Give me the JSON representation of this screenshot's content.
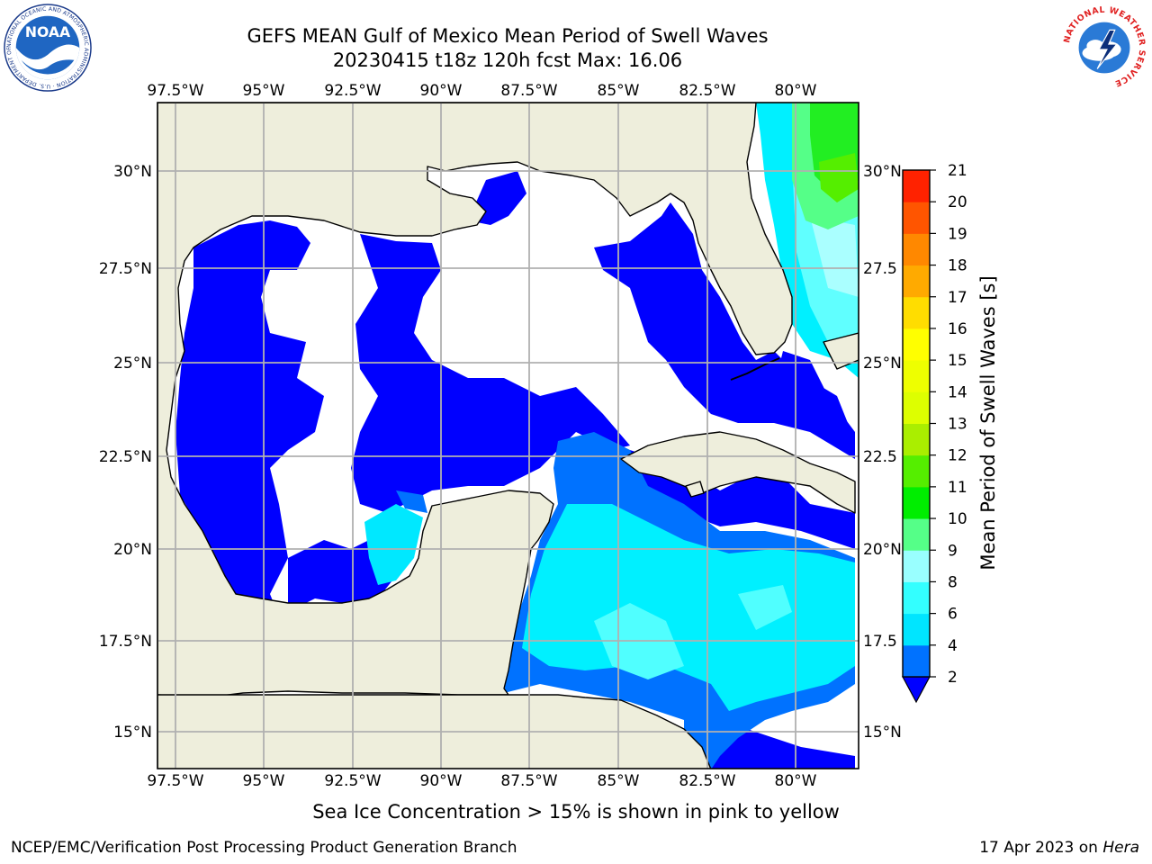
{
  "title": {
    "line1": "GEFS MEAN Gulf of Mexico Mean Period of Swell Waves",
    "line2": "20230415 t18z 120h fcst   Max: 16.06"
  },
  "map": {
    "lon_ticks": [
      "97.5°W",
      "95°W",
      "92.5°W",
      "90°W",
      "87.5°W",
      "85°W",
      "82.5°W",
      "80°W"
    ],
    "lat_ticks": [
      "30°N",
      "27.5°N",
      "25°N",
      "22.5°N",
      "20°N",
      "17.5°N",
      "15°N"
    ],
    "lat_ticks_right": [
      "30°N",
      "27.5",
      "25°N",
      "22.5",
      "20°N",
      "17.5",
      "15°N"
    ],
    "land_color": "#eeeedc",
    "grid_color": "#b0b0b0"
  },
  "colorbar": {
    "label": "Mean Period of Swell Waves [s]",
    "ticks": [
      "2",
      "4",
      "6",
      "8",
      "9",
      "10",
      "11",
      "12",
      "13",
      "14",
      "15",
      "16",
      "17",
      "18",
      "19",
      "20",
      "21"
    ],
    "colors": [
      "#0072ff",
      "#00e5ff",
      "#33ffff",
      "#99ffff",
      "#55ff88",
      "#00ee00",
      "#55ee00",
      "#aaee00",
      "#ddff00",
      "#eeff00",
      "#ffff00",
      "#ffdd00",
      "#ffaa00",
      "#ff8800",
      "#ff5500",
      "#ff2200",
      "#ff0000"
    ],
    "under_color": "#0000ff"
  },
  "logos": {
    "noaa_text": "NOAA",
    "noaa_ring": "NATIONAL OCEANIC AND ATMOSPHERIC ADMINISTRATION · U.S. DEPARTMENT OF COMMERCE",
    "nws_ring": "NATIONAL WEATHER SERVICE"
  },
  "note": "Sea Ice Concentration > 15% is shown in pink to yellow",
  "footer": {
    "left": "NCEP/EMC/Verification Post Processing Product Generation Branch",
    "right_date": "17 Apr 2023 on ",
    "right_host": "Hera"
  }
}
